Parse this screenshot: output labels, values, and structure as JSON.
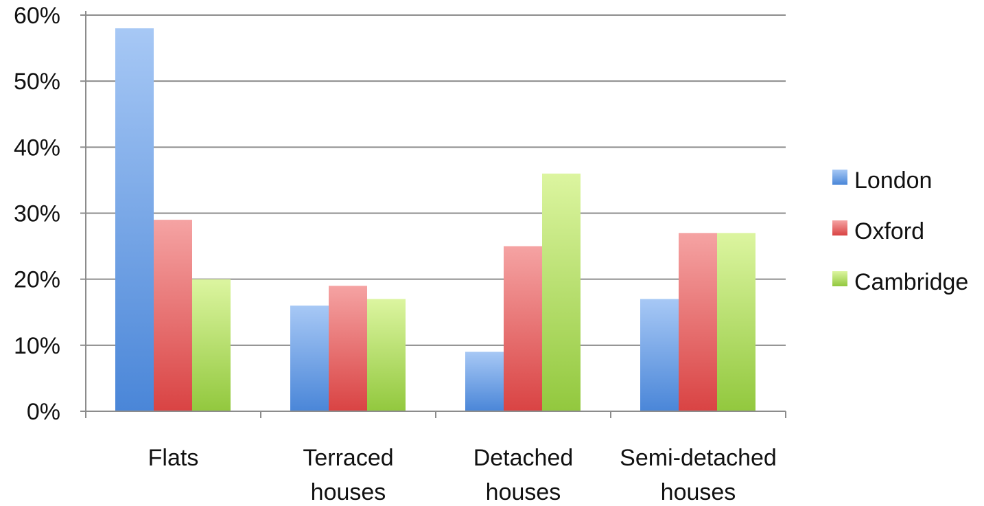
{
  "chart_data": {
    "type": "bar",
    "categories": [
      [
        "Flats"
      ],
      [
        "Terraced",
        "houses"
      ],
      [
        "Detached",
        "houses"
      ],
      [
        "Semi-detached",
        "houses"
      ]
    ],
    "series": [
      {
        "name": "London",
        "values": [
          58,
          16,
          9,
          17
        ],
        "color": "#4a86d8",
        "color_light": "#a7c8f5"
      },
      {
        "name": "Oxford",
        "values": [
          29,
          19,
          25,
          27
        ],
        "color": "#d94343",
        "color_light": "#f5a3a3"
      },
      {
        "name": "Cambridge",
        "values": [
          20,
          17,
          36,
          27
        ],
        "color": "#92c83e",
        "color_light": "#dcf5a0"
      }
    ],
    "y_ticks": [
      "0%",
      "10%",
      "20%",
      "30%",
      "40%",
      "50%",
      "60%"
    ],
    "ylim": [
      0,
      60
    ],
    "grid": true,
    "legend_position": "right",
    "title": "",
    "xlabel": "",
    "ylabel": ""
  }
}
